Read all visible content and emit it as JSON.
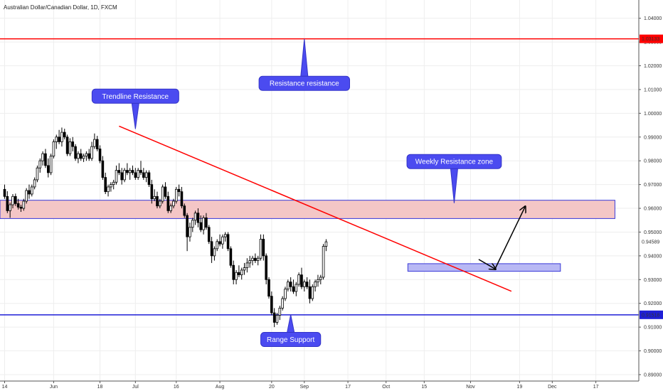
{
  "header": {
    "title": "Australian Dollar/Canadian Dollar, 1D, FXCM"
  },
  "chart_data": {
    "type": "candlestick",
    "ylim": [
      0.887,
      1.047
    ],
    "yticks": [
      "1.04000",
      "1.03000",
      "1.02000",
      "1.01000",
      "1.00000",
      "0.99000",
      "0.98000",
      "0.97000",
      "0.96000",
      "0.95000",
      "0.94000",
      "0.93000",
      "0.92000",
      "0.91000",
      "0.90000",
      "0.89000"
    ],
    "xticks": [
      {
        "label": "14",
        "day": 0
      },
      {
        "label": "Jun",
        "day": 18
      },
      {
        "label": "18",
        "day": 35
      },
      {
        "label": "Jul",
        "day": 48
      },
      {
        "label": "16",
        "day": 63
      },
      {
        "label": "Aug",
        "day": 79
      },
      {
        "label": "20",
        "day": 98
      },
      {
        "label": "Sep",
        "day": 110
      },
      {
        "label": "17",
        "day": 126
      },
      {
        "label": "Oct",
        "day": 140
      },
      {
        "label": "15",
        "day": 154
      },
      {
        "label": "Nov",
        "day": 171
      },
      {
        "label": "19",
        "day": 189
      },
      {
        "label": "Dec",
        "day": 201
      },
      {
        "label": "17",
        "day": 217
      }
    ],
    "price_lines": [
      {
        "label": "1.03133",
        "value": 1.03133,
        "color": "#ff0000"
      },
      {
        "label": "0.91518",
        "value": 0.91518,
        "color": "#1f1fd6"
      }
    ],
    "current_price": "0.94589",
    "zones": [
      {
        "name": "weekly-resistance-zone",
        "from_day": -4,
        "to_day": 224,
        "low": 0.9557,
        "high": 0.9634,
        "fill": "#f4c6c6",
        "stroke": "#3a3ad8"
      },
      {
        "name": "support-zone",
        "from_day": 148,
        "to_day": 204,
        "low": 0.9335,
        "high": 0.9367,
        "fill": "#b8b8f4",
        "stroke": "#3a3ad8"
      }
    ],
    "trendline": {
      "from_day": 42,
      "from_value": 0.9946,
      "to_day": 186,
      "to_value": 0.9251,
      "color": "#ff0000"
    },
    "projection": [
      {
        "day": 174,
        "value": 0.9385
      },
      {
        "day": 180,
        "value": 0.9345
      },
      {
        "day": 191,
        "value": 0.9606
      }
    ],
    "callouts": [
      {
        "name": "trendline-resistance",
        "text": "Trendline Resistance",
        "day": 48,
        "value": 1.0072,
        "point_day": 48,
        "point_value": 0.9934
      },
      {
        "name": "resistance-resistance",
        "text": "Resistance resistance",
        "day": 110,
        "value": 1.0126,
        "point_day": 110,
        "point_value": 1.0313
      },
      {
        "name": "weekly-resistance-zone",
        "text": "Weekly Resistance zone",
        "day": 165,
        "value": 0.9797,
        "point_day": 165,
        "point_value": 0.9622
      },
      {
        "name": "range-support",
        "text": "Range Support",
        "day": 105,
        "value": 0.9048,
        "point_day": 105,
        "point_value": 0.9153
      }
    ],
    "candles": [
      [
        0.968,
        0.97,
        0.964,
        0.965
      ],
      [
        0.965,
        0.9672,
        0.958,
        0.959
      ],
      [
        0.959,
        0.9624,
        0.956,
        0.9615
      ],
      [
        0.9615,
        0.966,
        0.96,
        0.965
      ],
      [
        0.965,
        0.9662,
        0.961,
        0.962
      ],
      [
        0.962,
        0.964,
        0.9595,
        0.9605
      ],
      [
        0.9605,
        0.9615,
        0.9585,
        0.96
      ],
      [
        0.96,
        0.964,
        0.959,
        0.963
      ],
      [
        0.963,
        0.9685,
        0.962,
        0.9675
      ],
      [
        0.9675,
        0.97,
        0.964,
        0.966
      ],
      [
        0.966,
        0.97,
        0.965,
        0.969
      ],
      [
        0.969,
        0.973,
        0.968,
        0.972
      ],
      [
        0.972,
        0.978,
        0.971,
        0.977
      ],
      [
        0.977,
        0.981,
        0.975,
        0.98
      ],
      [
        0.98,
        0.984,
        0.978,
        0.983
      ],
      [
        0.983,
        0.985,
        0.977,
        0.978
      ],
      [
        0.978,
        0.981,
        0.973,
        0.975
      ],
      [
        0.975,
        0.983,
        0.974,
        0.982
      ],
      [
        0.982,
        0.989,
        0.981,
        0.988
      ],
      [
        0.988,
        0.991,
        0.985,
        0.99
      ],
      [
        0.99,
        0.993,
        0.987,
        0.988
      ],
      [
        0.988,
        0.994,
        0.986,
        0.992
      ],
      [
        0.992,
        0.9935,
        0.989,
        0.99
      ],
      [
        0.99,
        0.991,
        0.982,
        0.983
      ],
      [
        0.983,
        0.9895,
        0.982,
        0.988
      ],
      [
        0.988,
        0.99,
        0.984,
        0.986
      ],
      [
        0.986,
        0.987,
        0.98,
        0.981
      ],
      [
        0.981,
        0.984,
        0.979,
        0.983
      ],
      [
        0.983,
        0.985,
        0.98,
        0.981
      ],
      [
        0.981,
        0.983,
        0.9795,
        0.982
      ],
      [
        0.982,
        0.984,
        0.98,
        0.983
      ],
      [
        0.983,
        0.985,
        0.98,
        0.981
      ],
      [
        0.981,
        0.988,
        0.98,
        0.986
      ],
      [
        0.986,
        0.9915,
        0.985,
        0.989
      ],
      [
        0.989,
        0.9905,
        0.984,
        0.985
      ],
      [
        0.985,
        0.9865,
        0.979,
        0.98
      ],
      [
        0.98,
        0.982,
        0.972,
        0.973
      ],
      [
        0.973,
        0.975,
        0.966,
        0.967
      ],
      [
        0.967,
        0.97,
        0.965,
        0.969
      ],
      [
        0.969,
        0.971,
        0.967,
        0.97
      ],
      [
        0.97,
        0.972,
        0.968,
        0.971
      ],
      [
        0.971,
        0.978,
        0.97,
        0.976
      ],
      [
        0.976,
        0.979,
        0.974,
        0.975
      ],
      [
        0.975,
        0.977,
        0.97,
        0.972
      ],
      [
        0.972,
        0.977,
        0.971,
        0.976
      ],
      [
        0.976,
        0.979,
        0.974,
        0.975
      ],
      [
        0.975,
        0.977,
        0.972,
        0.976
      ],
      [
        0.976,
        0.978,
        0.974,
        0.975
      ],
      [
        0.975,
        0.977,
        0.972,
        0.973
      ],
      [
        0.973,
        0.977,
        0.972,
        0.976
      ],
      [
        0.976,
        0.98,
        0.974,
        0.975
      ],
      [
        0.975,
        0.977,
        0.972,
        0.973
      ],
      [
        0.973,
        0.976,
        0.971,
        0.975
      ],
      [
        0.975,
        0.976,
        0.969,
        0.97
      ],
      [
        0.97,
        0.972,
        0.962,
        0.964
      ],
      [
        0.964,
        0.968,
        0.963,
        0.965
      ],
      [
        0.965,
        0.967,
        0.96,
        0.961
      ],
      [
        0.961,
        0.964,
        0.96,
        0.963
      ],
      [
        0.963,
        0.97,
        0.962,
        0.969
      ],
      [
        0.969,
        0.971,
        0.964,
        0.965
      ],
      [
        0.965,
        0.967,
        0.958,
        0.959
      ],
      [
        0.959,
        0.962,
        0.958,
        0.961
      ],
      [
        0.961,
        0.964,
        0.96,
        0.963
      ],
      [
        0.963,
        0.969,
        0.962,
        0.968
      ],
      [
        0.968,
        0.97,
        0.965,
        0.967
      ],
      [
        0.967,
        0.969,
        0.96,
        0.961
      ],
      [
        0.961,
        0.962,
        0.956,
        0.957
      ],
      [
        0.957,
        0.958,
        0.942,
        0.948
      ],
      [
        0.948,
        0.954,
        0.946,
        0.952
      ],
      [
        0.952,
        0.956,
        0.95,
        0.955
      ],
      [
        0.955,
        0.959,
        0.953,
        0.958
      ],
      [
        0.958,
        0.96,
        0.952,
        0.954
      ],
      [
        0.954,
        0.957,
        0.95,
        0.951
      ],
      [
        0.951,
        0.957,
        0.949,
        0.956
      ],
      [
        0.956,
        0.958,
        0.951,
        0.952
      ],
      [
        0.952,
        0.953,
        0.945,
        0.946
      ],
      [
        0.946,
        0.948,
        0.937,
        0.94
      ],
      [
        0.94,
        0.944,
        0.938,
        0.943
      ],
      [
        0.943,
        0.947,
        0.942,
        0.946
      ],
      [
        0.946,
        0.949,
        0.944,
        0.945
      ],
      [
        0.945,
        0.949,
        0.943,
        0.948
      ],
      [
        0.948,
        0.95,
        0.946,
        0.949
      ],
      [
        0.949,
        0.95,
        0.942,
        0.943
      ],
      [
        0.943,
        0.944,
        0.935,
        0.936
      ],
      [
        0.936,
        0.938,
        0.928,
        0.93
      ],
      [
        0.93,
        0.934,
        0.928,
        0.933
      ],
      [
        0.933,
        0.936,
        0.931,
        0.932
      ],
      [
        0.932,
        0.935,
        0.93,
        0.934
      ],
      [
        0.934,
        0.937,
        0.932,
        0.935
      ],
      [
        0.935,
        0.939,
        0.933,
        0.937
      ],
      [
        0.937,
        0.94,
        0.935,
        0.938
      ],
      [
        0.938,
        0.94,
        0.936,
        0.939
      ],
      [
        0.939,
        0.941,
        0.937,
        0.938
      ],
      [
        0.938,
        0.94,
        0.936,
        0.939
      ],
      [
        0.939,
        0.949,
        0.938,
        0.947
      ],
      [
        0.947,
        0.949,
        0.938,
        0.94
      ],
      [
        0.94,
        0.941,
        0.928,
        0.93
      ],
      [
        0.93,
        0.931,
        0.922,
        0.923
      ],
      [
        0.923,
        0.925,
        0.915,
        0.916
      ],
      [
        0.916,
        0.918,
        0.91,
        0.912
      ],
      [
        0.912,
        0.916,
        0.911,
        0.915
      ],
      [
        0.915,
        0.919,
        0.913,
        0.918
      ],
      [
        0.918,
        0.923,
        0.917,
        0.922
      ],
      [
        0.922,
        0.927,
        0.921,
        0.926
      ],
      [
        0.926,
        0.93,
        0.925,
        0.929
      ],
      [
        0.929,
        0.931,
        0.925,
        0.927
      ],
      [
        0.927,
        0.93,
        0.924,
        0.925
      ],
      [
        0.925,
        0.929,
        0.923,
        0.928
      ],
      [
        0.928,
        0.933,
        0.927,
        0.932
      ],
      [
        0.932,
        0.935,
        0.926,
        0.927
      ],
      [
        0.927,
        0.93,
        0.925,
        0.929
      ],
      [
        0.929,
        0.931,
        0.926,
        0.927
      ],
      [
        0.927,
        0.93,
        0.92,
        0.922
      ],
      [
        0.922,
        0.928,
        0.921,
        0.927
      ],
      [
        0.927,
        0.93,
        0.925,
        0.929
      ],
      [
        0.929,
        0.932,
        0.927,
        0.93
      ],
      [
        0.93,
        0.932,
        0.928,
        0.931
      ],
      [
        0.931,
        0.945,
        0.93,
        0.944
      ],
      [
        0.944,
        0.947,
        0.942,
        0.9459
      ]
    ]
  }
}
